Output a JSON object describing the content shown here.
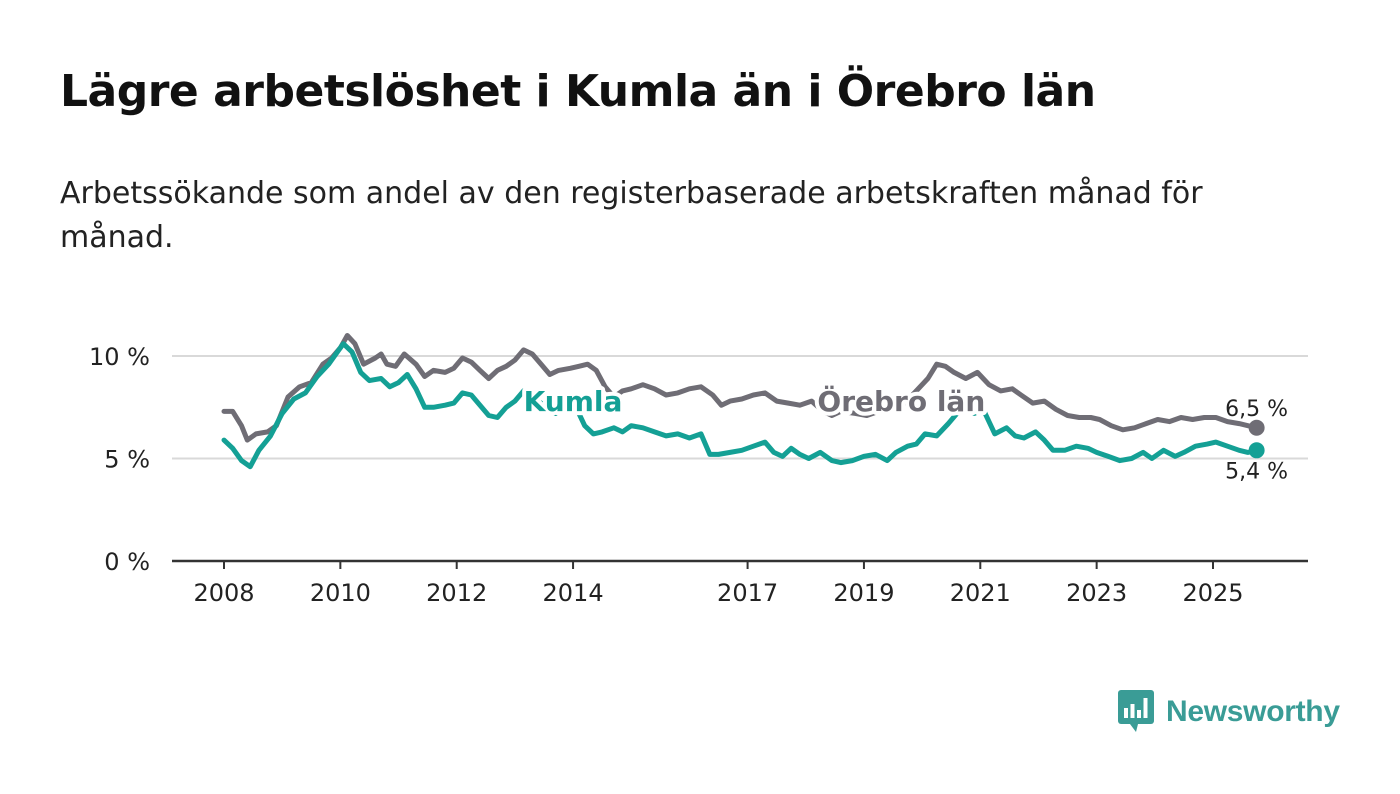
{
  "title": "Lägre arbetslöshet i Kumla än i Örebro län",
  "subtitle": "Arbetssökande som andel av den registerbaserade arbetskraften månad för månad.",
  "brand": "Newsworthy",
  "colors": {
    "kumla": "#14a095",
    "orebro": "#6f6d75",
    "grid": "#d9d9d9",
    "axis": "#333333"
  },
  "chart_data": {
    "type": "line",
    "ylim": [
      0,
      12
    ],
    "xlim": [
      2008,
      2026.3
    ],
    "y_ticks": [
      {
        "value": 0,
        "label": "0 %"
      },
      {
        "value": 5,
        "label": "5 %"
      },
      {
        "value": 10,
        "label": "10 %"
      }
    ],
    "x_ticks": [
      {
        "value": 2008,
        "label": "2008"
      },
      {
        "value": 2010,
        "label": "2010"
      },
      {
        "value": 2012,
        "label": "2012"
      },
      {
        "value": 2014,
        "label": "2014"
      },
      {
        "value": 2017,
        "label": "2017"
      },
      {
        "value": 2019,
        "label": "2019"
      },
      {
        "value": 2021,
        "label": "2021"
      },
      {
        "value": 2023,
        "label": "2023"
      },
      {
        "value": 2025,
        "label": "2025"
      }
    ],
    "series": [
      {
        "name": "Örebro län",
        "label": "Örebro län",
        "label_at": {
          "x": 2018.2,
          "y": 7.8
        },
        "end_label": "6,5 %",
        "end_value": 6.5,
        "end_x": 2025.75,
        "points": [
          [
            2008.0,
            7.3
          ],
          [
            2008.15,
            7.3
          ],
          [
            2008.3,
            6.6
          ],
          [
            2008.4,
            5.9
          ],
          [
            2008.55,
            6.2
          ],
          [
            2008.75,
            6.3
          ],
          [
            2008.9,
            6.6
          ],
          [
            2009.1,
            8.0
          ],
          [
            2009.3,
            8.5
          ],
          [
            2009.5,
            8.7
          ],
          [
            2009.7,
            9.6
          ],
          [
            2009.85,
            9.9
          ],
          [
            2010.0,
            10.4
          ],
          [
            2010.12,
            11.0
          ],
          [
            2010.25,
            10.6
          ],
          [
            2010.4,
            9.6
          ],
          [
            2010.6,
            9.9
          ],
          [
            2010.7,
            10.1
          ],
          [
            2010.8,
            9.6
          ],
          [
            2010.95,
            9.5
          ],
          [
            2011.1,
            10.1
          ],
          [
            2011.3,
            9.6
          ],
          [
            2011.45,
            9.0
          ],
          [
            2011.6,
            9.3
          ],
          [
            2011.8,
            9.2
          ],
          [
            2011.95,
            9.4
          ],
          [
            2012.1,
            9.9
          ],
          [
            2012.25,
            9.7
          ],
          [
            2012.4,
            9.3
          ],
          [
            2012.55,
            8.9
          ],
          [
            2012.7,
            9.3
          ],
          [
            2012.85,
            9.5
          ],
          [
            2013.0,
            9.8
          ],
          [
            2013.15,
            10.3
          ],
          [
            2013.3,
            10.1
          ],
          [
            2013.45,
            9.6
          ],
          [
            2013.6,
            9.1
          ],
          [
            2013.75,
            9.3
          ],
          [
            2013.95,
            9.4
          ],
          [
            2014.1,
            9.5
          ],
          [
            2014.25,
            9.6
          ],
          [
            2014.4,
            9.3
          ],
          [
            2014.55,
            8.5
          ],
          [
            2014.7,
            8.0
          ],
          [
            2014.85,
            8.3
          ],
          [
            2015.0,
            8.4
          ],
          [
            2015.2,
            8.6
          ],
          [
            2015.4,
            8.4
          ],
          [
            2015.6,
            8.1
          ],
          [
            2015.8,
            8.2
          ],
          [
            2016.0,
            8.4
          ],
          [
            2016.2,
            8.5
          ],
          [
            2016.4,
            8.1
          ],
          [
            2016.55,
            7.6
          ],
          [
            2016.7,
            7.8
          ],
          [
            2016.9,
            7.9
          ],
          [
            2017.1,
            8.1
          ],
          [
            2017.3,
            8.2
          ],
          [
            2017.5,
            7.8
          ],
          [
            2017.7,
            7.7
          ],
          [
            2017.9,
            7.6
          ],
          [
            2018.1,
            7.8
          ],
          [
            2018.3,
            7.3
          ],
          [
            2018.45,
            7.1
          ],
          [
            2018.6,
            7.3
          ],
          [
            2018.85,
            7.2
          ],
          [
            2019.05,
            7.1
          ],
          [
            2019.25,
            7.3
          ],
          [
            2019.5,
            7.6
          ],
          [
            2019.7,
            7.7
          ],
          [
            2019.9,
            8.3
          ],
          [
            2020.1,
            8.9
          ],
          [
            2020.25,
            9.6
          ],
          [
            2020.4,
            9.5
          ],
          [
            2020.55,
            9.2
          ],
          [
            2020.75,
            8.9
          ],
          [
            2020.95,
            9.2
          ],
          [
            2021.15,
            8.6
          ],
          [
            2021.35,
            8.3
          ],
          [
            2021.55,
            8.4
          ],
          [
            2021.7,
            8.1
          ],
          [
            2021.9,
            7.7
          ],
          [
            2022.1,
            7.8
          ],
          [
            2022.3,
            7.4
          ],
          [
            2022.5,
            7.1
          ],
          [
            2022.7,
            7.0
          ],
          [
            2022.9,
            7.0
          ],
          [
            2023.05,
            6.9
          ],
          [
            2023.25,
            6.6
          ],
          [
            2023.45,
            6.4
          ],
          [
            2023.65,
            6.5
          ],
          [
            2023.85,
            6.7
          ],
          [
            2024.05,
            6.9
          ],
          [
            2024.25,
            6.8
          ],
          [
            2024.45,
            7.0
          ],
          [
            2024.65,
            6.9
          ],
          [
            2024.85,
            7.0
          ],
          [
            2025.05,
            7.0
          ],
          [
            2025.25,
            6.8
          ],
          [
            2025.45,
            6.7
          ],
          [
            2025.6,
            6.6
          ],
          [
            2025.75,
            6.5
          ]
        ]
      },
      {
        "name": "Kumla",
        "label": "Kumla",
        "label_at": {
          "x": 2013.15,
          "y": 7.8
        },
        "end_label": "5,4 %",
        "end_value": 5.4,
        "end_x": 2025.75,
        "points": [
          [
            2008.0,
            5.9
          ],
          [
            2008.15,
            5.5
          ],
          [
            2008.3,
            4.9
          ],
          [
            2008.45,
            4.6
          ],
          [
            2008.6,
            5.4
          ],
          [
            2008.8,
            6.1
          ],
          [
            2009.0,
            7.2
          ],
          [
            2009.2,
            7.9
          ],
          [
            2009.4,
            8.2
          ],
          [
            2009.6,
            9.0
          ],
          [
            2009.8,
            9.6
          ],
          [
            2009.95,
            10.2
          ],
          [
            2010.05,
            10.6
          ],
          [
            2010.2,
            10.2
          ],
          [
            2010.35,
            9.2
          ],
          [
            2010.5,
            8.8
          ],
          [
            2010.7,
            8.9
          ],
          [
            2010.85,
            8.5
          ],
          [
            2011.0,
            8.7
          ],
          [
            2011.15,
            9.1
          ],
          [
            2011.3,
            8.4
          ],
          [
            2011.45,
            7.5
          ],
          [
            2011.6,
            7.5
          ],
          [
            2011.8,
            7.6
          ],
          [
            2011.95,
            7.7
          ],
          [
            2012.1,
            8.2
          ],
          [
            2012.25,
            8.1
          ],
          [
            2012.4,
            7.6
          ],
          [
            2012.55,
            7.1
          ],
          [
            2012.7,
            7.0
          ],
          [
            2012.85,
            7.5
          ],
          [
            2013.0,
            7.8
          ],
          [
            2013.15,
            8.3
          ],
          [
            2013.3,
            8.0
          ],
          [
            2013.5,
            7.6
          ],
          [
            2013.7,
            7.2
          ],
          [
            2013.9,
            7.6
          ],
          [
            2014.05,
            7.5
          ],
          [
            2014.2,
            6.6
          ],
          [
            2014.35,
            6.2
          ],
          [
            2014.5,
            6.3
          ],
          [
            2014.7,
            6.5
          ],
          [
            2014.85,
            6.3
          ],
          [
            2015.0,
            6.6
          ],
          [
            2015.2,
            6.5
          ],
          [
            2015.4,
            6.3
          ],
          [
            2015.6,
            6.1
          ],
          [
            2015.8,
            6.2
          ],
          [
            2016.0,
            6.0
          ],
          [
            2016.2,
            6.2
          ],
          [
            2016.35,
            5.2
          ],
          [
            2016.5,
            5.2
          ],
          [
            2016.7,
            5.3
          ],
          [
            2016.9,
            5.4
          ],
          [
            2017.1,
            5.6
          ],
          [
            2017.3,
            5.8
          ],
          [
            2017.45,
            5.3
          ],
          [
            2017.6,
            5.1
          ],
          [
            2017.75,
            5.5
          ],
          [
            2017.9,
            5.2
          ],
          [
            2018.05,
            5.0
          ],
          [
            2018.25,
            5.3
          ],
          [
            2018.45,
            4.9
          ],
          [
            2018.6,
            4.8
          ],
          [
            2018.8,
            4.9
          ],
          [
            2019.0,
            5.1
          ],
          [
            2019.2,
            5.2
          ],
          [
            2019.4,
            4.9
          ],
          [
            2019.55,
            5.3
          ],
          [
            2019.75,
            5.6
          ],
          [
            2019.9,
            5.7
          ],
          [
            2020.05,
            6.2
          ],
          [
            2020.25,
            6.1
          ],
          [
            2020.45,
            6.7
          ],
          [
            2020.6,
            7.2
          ],
          [
            2020.75,
            7.4
          ],
          [
            2020.9,
            7.2
          ],
          [
            2021.05,
            7.4
          ],
          [
            2021.25,
            6.2
          ],
          [
            2021.45,
            6.5
          ],
          [
            2021.6,
            6.1
          ],
          [
            2021.75,
            6.0
          ],
          [
            2021.95,
            6.3
          ],
          [
            2022.1,
            5.9
          ],
          [
            2022.25,
            5.4
          ],
          [
            2022.45,
            5.4
          ],
          [
            2022.65,
            5.6
          ],
          [
            2022.85,
            5.5
          ],
          [
            2023.0,
            5.3
          ],
          [
            2023.2,
            5.1
          ],
          [
            2023.4,
            4.9
          ],
          [
            2023.6,
            5.0
          ],
          [
            2023.8,
            5.3
          ],
          [
            2023.95,
            5.0
          ],
          [
            2024.15,
            5.4
          ],
          [
            2024.35,
            5.1
          ],
          [
            2024.5,
            5.3
          ],
          [
            2024.7,
            5.6
          ],
          [
            2024.9,
            5.7
          ],
          [
            2025.05,
            5.8
          ],
          [
            2025.25,
            5.6
          ],
          [
            2025.45,
            5.4
          ],
          [
            2025.6,
            5.3
          ],
          [
            2025.75,
            5.4
          ]
        ]
      }
    ]
  }
}
